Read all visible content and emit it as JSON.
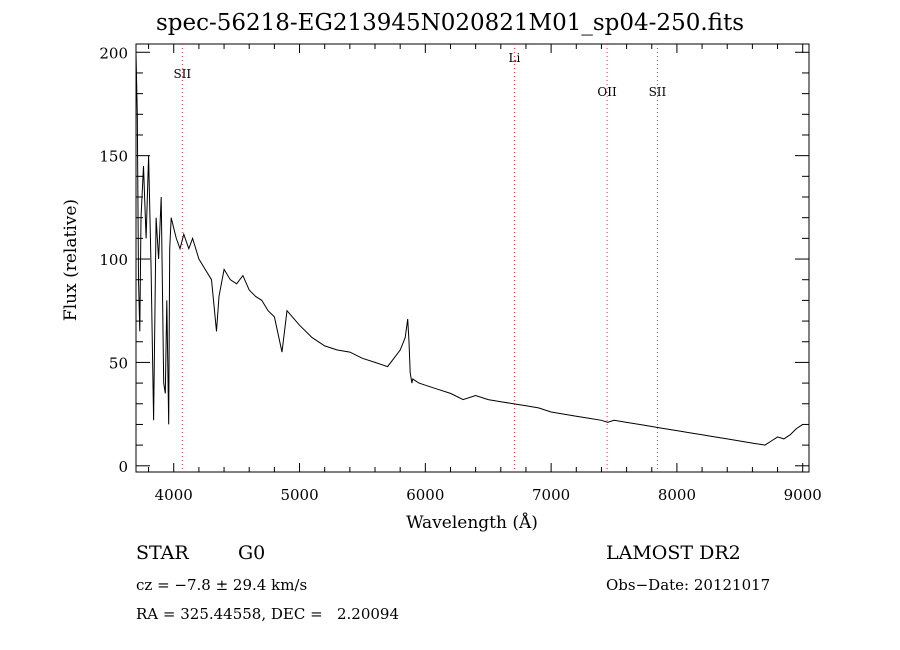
{
  "chart_data": {
    "type": "line",
    "title": "spec-56218-EG213945N020821M01_sp04-250.fits",
    "xlabel": "Wavelength (Å)",
    "ylabel": "Flux (relative)",
    "xlim": [
      3700,
      9050
    ],
    "ylim": [
      -3,
      204
    ],
    "x_ticks": [
      4000,
      5000,
      6000,
      7000,
      8000,
      9000
    ],
    "x_tick_labels": [
      "4000",
      "5000",
      "6000",
      "7000",
      "8000",
      "9000"
    ],
    "y_ticks": [
      0,
      50,
      100,
      150,
      200
    ],
    "y_tick_labels": [
      "0",
      "50",
      "100",
      "150",
      "200"
    ],
    "grid": false,
    "series": [
      {
        "name": "spectrum",
        "x": [
          3700,
          3710,
          3720,
          3730,
          3740,
          3760,
          3780,
          3800,
          3820,
          3840,
          3860,
          3880,
          3900,
          3920,
          3933,
          3945,
          3960,
          3968,
          3980,
          4000,
          4020,
          4050,
          4080,
          4102,
          4120,
          4150,
          4200,
          4250,
          4300,
          4340,
          4360,
          4400,
          4450,
          4500,
          4550,
          4600,
          4650,
          4700,
          4750,
          4800,
          4861,
          4900,
          5000,
          5100,
          5200,
          5300,
          5400,
          5500,
          5600,
          5700,
          5750,
          5800,
          5840,
          5860,
          5870,
          5880,
          5893,
          5900,
          5950,
          6000,
          6100,
          6200,
          6300,
          6400,
          6500,
          6600,
          6700,
          6800,
          6900,
          7000,
          7100,
          7200,
          7300,
          7400,
          7450,
          7500,
          7600,
          7700,
          7800,
          7900,
          8000,
          8100,
          8200,
          8300,
          8400,
          8500,
          8600,
          8700,
          8750,
          8800,
          8850,
          8900,
          8950,
          9000
        ],
        "y": [
          200,
          170,
          90,
          65,
          120,
          145,
          110,
          150,
          95,
          22,
          120,
          100,
          130,
          40,
          35,
          80,
          20,
          105,
          120,
          115,
          110,
          105,
          112,
          108,
          105,
          110,
          100,
          95,
          90,
          65,
          82,
          95,
          90,
          88,
          92,
          85,
          82,
          80,
          75,
          72,
          55,
          75,
          68,
          62,
          58,
          56,
          55,
          52,
          50,
          48,
          52,
          56,
          62,
          71,
          60,
          45,
          40,
          42,
          40,
          39,
          37,
          35,
          32,
          34,
          32,
          31,
          30,
          29,
          28,
          26,
          25,
          24,
          23,
          22,
          21,
          22,
          21,
          20,
          19,
          18,
          17,
          16,
          15,
          14,
          13,
          12,
          11,
          10,
          12,
          14,
          13,
          15,
          18,
          20
        ]
      }
    ],
    "annotations": [
      {
        "label": "SII",
        "x": 4068
      },
      {
        "label": "Li",
        "x": 6708
      },
      {
        "label": "OII",
        "x": 7445
      },
      {
        "label": "SII",
        "x": 7845
      }
    ]
  },
  "info": {
    "object_class": "STAR",
    "subclass": "G0",
    "survey": "LAMOST DR2",
    "cz": "cz = −7.8 ± 29.4 km/s",
    "obs_date": "Obs−Date: 20121017",
    "coords": "RA = 325.44558, DEC =   2.20094"
  },
  "colors": {
    "line": "#000000",
    "marker_lines": "#e03030",
    "axes": "#000000"
  }
}
